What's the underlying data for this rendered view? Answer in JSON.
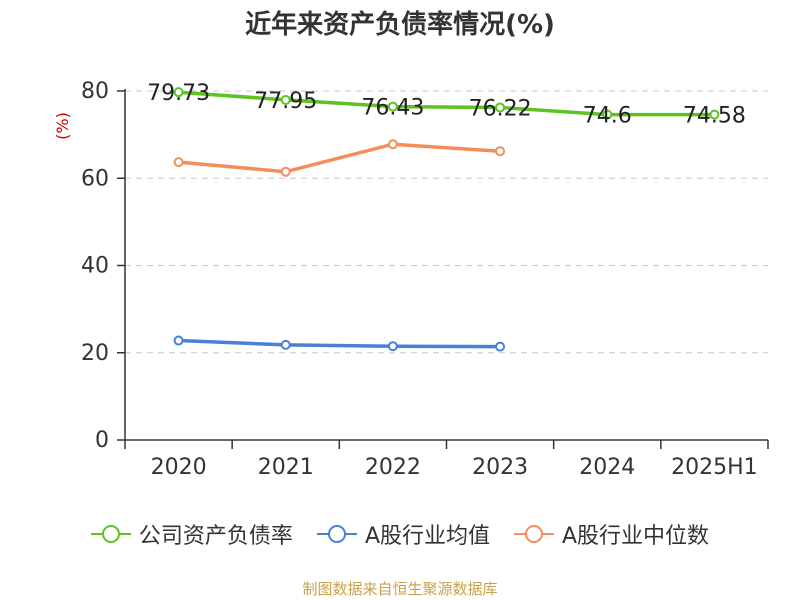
{
  "title": "近年来资产负债率情况(%)",
  "source": "制图数据来自恒生聚源数据库",
  "colors": {
    "company": "#5ec31f",
    "industry_avg": "#4a7fd8",
    "industry_median": "#f58d5a",
    "axis": "#333333",
    "grid": "#c8c8c8",
    "ylabel": "#cc0000"
  },
  "chart_data": {
    "type": "line",
    "title": "近年来资产负债率情况(%)",
    "xlabel": "",
    "ylabel": "(%)",
    "ylim": [
      0,
      80
    ],
    "yticks": [
      0,
      20,
      40,
      60,
      80
    ],
    "grid": true,
    "legend_position": "bottom",
    "categories": [
      "2020",
      "2021",
      "2022",
      "2023",
      "2024",
      "2025H1"
    ],
    "series": [
      {
        "name": "公司资产负债率",
        "color": "#5ec31f",
        "values": [
          79.73,
          77.95,
          76.43,
          76.22,
          74.6,
          74.58
        ],
        "labels": [
          "79.73",
          "77.95",
          "76.43",
          "76.22",
          "74.6",
          "74.58"
        ],
        "show_labels": true
      },
      {
        "name": "A股行业均值",
        "color": "#4a7fd8",
        "values": [
          22.8,
          21.8,
          21.5,
          21.4,
          null,
          null
        ],
        "show_labels": false
      },
      {
        "name": "A股行业中位数",
        "color": "#f58d5a",
        "values": [
          63.7,
          61.5,
          67.8,
          66.2,
          null,
          null
        ],
        "show_labels": false
      }
    ]
  }
}
